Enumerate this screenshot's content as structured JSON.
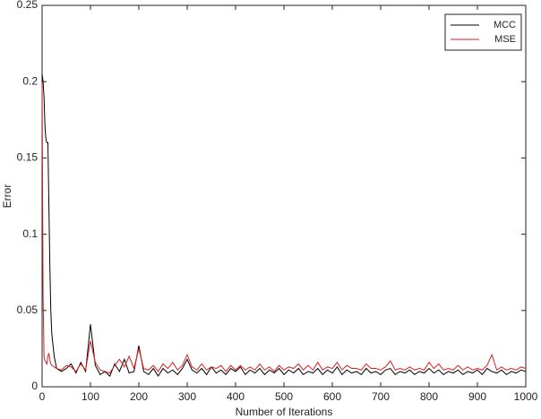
{
  "chart_data": {
    "type": "line",
    "xlabel": "Number of Iterations",
    "ylabel": "Error",
    "x": [
      0,
      2,
      4,
      6,
      8,
      10,
      12,
      14,
      16,
      18,
      20,
      25,
      30,
      40,
      50,
      60,
      70,
      80,
      90,
      100,
      110,
      120,
      130,
      140,
      150,
      160,
      170,
      180,
      190,
      200,
      210,
      220,
      230,
      240,
      250,
      260,
      270,
      280,
      290,
      300,
      310,
      320,
      330,
      340,
      350,
      360,
      370,
      380,
      390,
      400,
      410,
      420,
      430,
      440,
      450,
      460,
      470,
      480,
      490,
      500,
      510,
      520,
      530,
      540,
      550,
      560,
      570,
      580,
      590,
      600,
      610,
      620,
      630,
      640,
      650,
      660,
      670,
      680,
      690,
      700,
      710,
      720,
      730,
      740,
      750,
      760,
      770,
      780,
      790,
      800,
      810,
      820,
      830,
      840,
      850,
      860,
      870,
      880,
      890,
      900,
      910,
      920,
      930,
      940,
      950,
      960,
      970,
      980,
      990,
      1000
    ],
    "series": [
      {
        "name": "MCC",
        "color": "#000000",
        "values": [
          0.205,
          0.2,
          0.19,
          0.17,
          0.162,
          0.16,
          0.16,
          0.12,
          0.08,
          0.05,
          0.035,
          0.02,
          0.012,
          0.01,
          0.012,
          0.015,
          0.009,
          0.016,
          0.01,
          0.041,
          0.014,
          0.008,
          0.01,
          0.007,
          0.015,
          0.01,
          0.018,
          0.009,
          0.01,
          0.027,
          0.01,
          0.008,
          0.012,
          0.007,
          0.012,
          0.009,
          0.011,
          0.008,
          0.012,
          0.018,
          0.011,
          0.009,
          0.012,
          0.008,
          0.013,
          0.009,
          0.011,
          0.008,
          0.012,
          0.01,
          0.013,
          0.008,
          0.011,
          0.009,
          0.012,
          0.008,
          0.011,
          0.009,
          0.012,
          0.008,
          0.011,
          0.009,
          0.012,
          0.008,
          0.01,
          0.009,
          0.012,
          0.008,
          0.011,
          0.009,
          0.013,
          0.008,
          0.011,
          0.009,
          0.01,
          0.008,
          0.012,
          0.009,
          0.01,
          0.008,
          0.011,
          0.012,
          0.008,
          0.01,
          0.009,
          0.011,
          0.008,
          0.01,
          0.009,
          0.012,
          0.009,
          0.011,
          0.008,
          0.01,
          0.009,
          0.011,
          0.008,
          0.01,
          0.009,
          0.011,
          0.008,
          0.012,
          0.01,
          0.009,
          0.011,
          0.008,
          0.01,
          0.009,
          0.011,
          0.01
        ]
      },
      {
        "name": "MSE",
        "color": "#d62020",
        "values": [
          0.2,
          0.06,
          0.02,
          0.017,
          0.016,
          0.015,
          0.02,
          0.022,
          0.018,
          0.015,
          0.014,
          0.013,
          0.012,
          0.011,
          0.014,
          0.013,
          0.01,
          0.015,
          0.011,
          0.03,
          0.016,
          0.011,
          0.01,
          0.009,
          0.014,
          0.018,
          0.013,
          0.02,
          0.012,
          0.025,
          0.012,
          0.011,
          0.014,
          0.01,
          0.015,
          0.012,
          0.016,
          0.011,
          0.014,
          0.021,
          0.013,
          0.011,
          0.015,
          0.011,
          0.013,
          0.012,
          0.014,
          0.01,
          0.014,
          0.011,
          0.014,
          0.011,
          0.013,
          0.011,
          0.015,
          0.011,
          0.013,
          0.01,
          0.014,
          0.011,
          0.013,
          0.012,
          0.015,
          0.011,
          0.014,
          0.011,
          0.016,
          0.011,
          0.013,
          0.012,
          0.016,
          0.011,
          0.014,
          0.012,
          0.012,
          0.011,
          0.015,
          0.012,
          0.012,
          0.011,
          0.013,
          0.017,
          0.011,
          0.012,
          0.011,
          0.013,
          0.011,
          0.012,
          0.011,
          0.016,
          0.012,
          0.015,
          0.011,
          0.012,
          0.011,
          0.014,
          0.011,
          0.013,
          0.011,
          0.012,
          0.011,
          0.014,
          0.021,
          0.011,
          0.013,
          0.011,
          0.012,
          0.011,
          0.013,
          0.012
        ]
      }
    ],
    "xlim": [
      0,
      1000
    ],
    "xticks": [
      0,
      100,
      200,
      300,
      400,
      500,
      600,
      700,
      800,
      900,
      1000
    ],
    "ylim": [
      0,
      0.25
    ],
    "yticks": [
      0,
      0.05,
      0.1,
      0.15,
      0.2,
      0.25
    ],
    "grid": false,
    "legend": "upper right"
  }
}
